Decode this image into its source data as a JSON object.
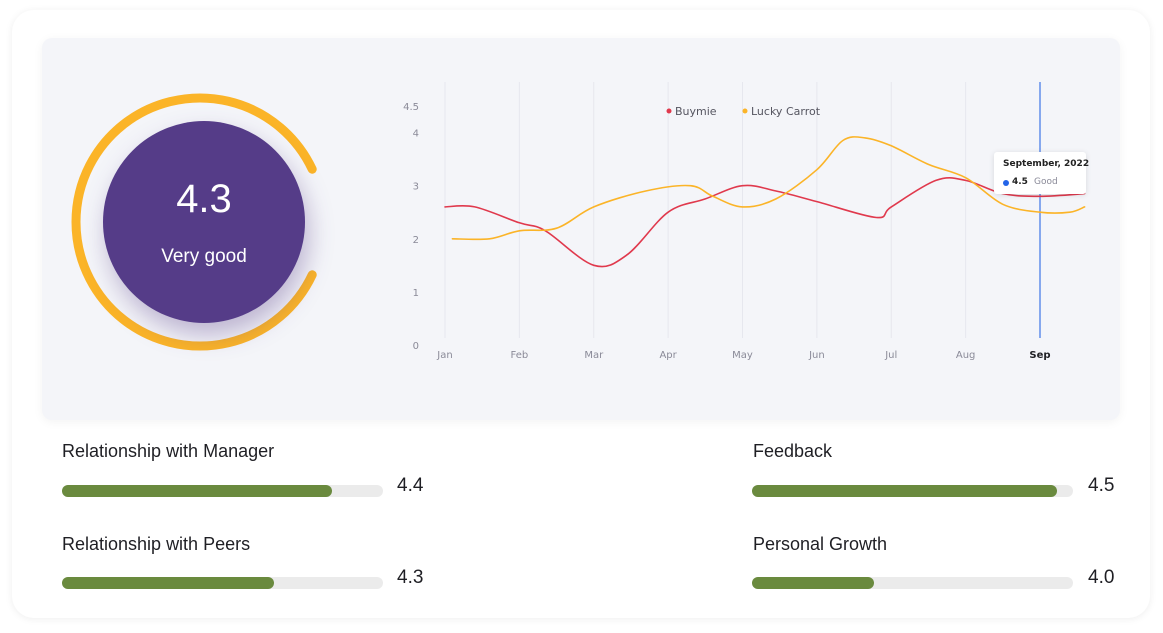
{
  "score": {
    "value": "4.3",
    "label": "Very good",
    "gauge_fraction": 0.86,
    "ring_color": "#fbb428",
    "disc_color": "#553c88"
  },
  "chart_data": {
    "type": "line",
    "x": [
      "Jan",
      "Feb",
      "Mar",
      "Apr",
      "May",
      "Jun",
      "Jul",
      "Aug",
      "Sep"
    ],
    "y_ticks": [
      "0",
      "1",
      "2",
      "3",
      "4",
      "4.5"
    ],
    "ylim": [
      0,
      4.5
    ],
    "highlight_x": "Sep",
    "grid": "vertical",
    "legend_placement": "top",
    "series": [
      {
        "name": "Buymie",
        "color": "#e0394d",
        "points": [
          [
            0,
            2.6
          ],
          [
            0.4,
            2.6
          ],
          [
            1,
            2.3
          ],
          [
            1.35,
            2.15
          ],
          [
            2,
            1.5
          ],
          [
            2.45,
            1.7
          ],
          [
            3,
            2.5
          ],
          [
            3.5,
            2.75
          ],
          [
            4,
            3.0
          ],
          [
            4.45,
            2.9
          ],
          [
            5,
            2.7
          ],
          [
            5.8,
            2.4
          ],
          [
            6,
            2.6
          ],
          [
            6.6,
            3.1
          ],
          [
            7,
            3.1
          ],
          [
            7.5,
            2.85
          ],
          [
            8,
            2.8
          ],
          [
            8.6,
            2.85
          ]
        ]
      },
      {
        "name": "Lucky Carrot",
        "color": "#fbb428",
        "points": [
          [
            0.1,
            2.0
          ],
          [
            0.6,
            2.0
          ],
          [
            1,
            2.15
          ],
          [
            1.5,
            2.2
          ],
          [
            2,
            2.6
          ],
          [
            2.7,
            2.9
          ],
          [
            3.3,
            3.0
          ],
          [
            3.6,
            2.8
          ],
          [
            4,
            2.6
          ],
          [
            4.45,
            2.75
          ],
          [
            5,
            3.3
          ],
          [
            5.35,
            3.85
          ],
          [
            5.65,
            3.9
          ],
          [
            6,
            3.75
          ],
          [
            6.5,
            3.4
          ],
          [
            7,
            3.15
          ],
          [
            7.5,
            2.65
          ],
          [
            8,
            2.5
          ],
          [
            8.4,
            2.5
          ],
          [
            8.6,
            2.6
          ]
        ]
      }
    ],
    "tooltip": {
      "title": "September, 2022",
      "value": "4.5",
      "status": "Good",
      "dot_color": "#2364e8"
    }
  },
  "metrics": [
    {
      "label": "Relationship with Manager",
      "value": "4.4",
      "fraction": 0.84
    },
    {
      "label": "Feedback",
      "value": "4.5",
      "fraction": 0.95
    },
    {
      "label": "Relationship with Peers",
      "value": "4.3",
      "fraction": 0.66
    },
    {
      "label": "Personal Growth",
      "value": "4.0",
      "fraction": 0.38
    }
  ],
  "colors": {
    "bar_fill": "#6a8a3e",
    "bar_track": "#ebebeb",
    "cursor_line": "#4b7ee8"
  }
}
